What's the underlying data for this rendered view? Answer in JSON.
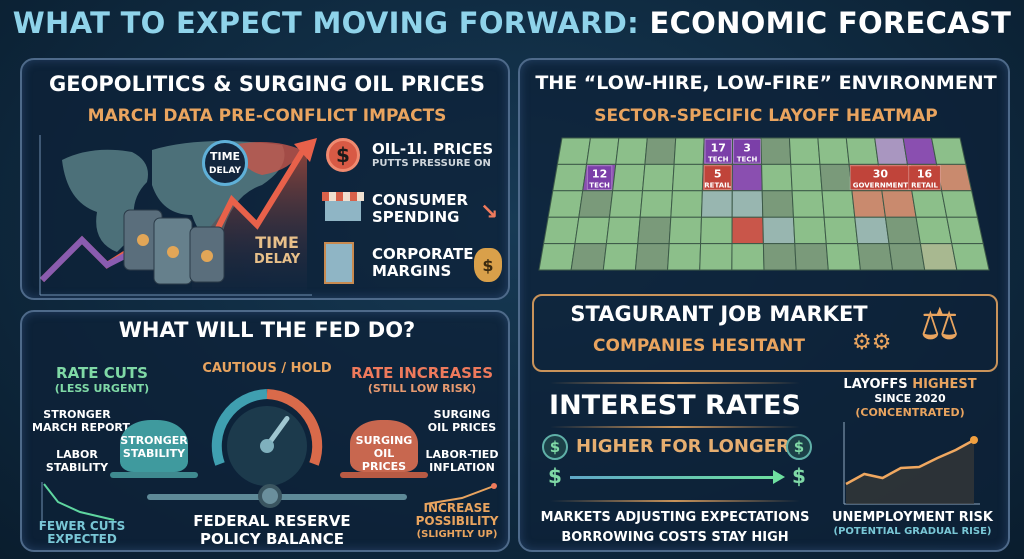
{
  "header": {
    "title_part1": "WHAT TO EXPECT MOVING FORWARD:",
    "title_part2": "ECONOMIC FORECAST"
  },
  "oil_panel": {
    "title": "GEOPOLITICS & SURGING OIL PRICES",
    "subtitle": "MARCH DATA PRE-CONFLICT IMPACTS",
    "time_delay_badge": [
      "TIME",
      "DELAY"
    ],
    "time_delay_label": [
      "TIME",
      "DELAY"
    ],
    "impacts": [
      {
        "title": "OIL-1I. PRICES",
        "sub": "PUTTS PRESSURE ON",
        "icon": "dollar-coin-icon"
      },
      {
        "title": [
          "CONSUMER",
          "SPENDING"
        ],
        "icon": "storefront-icon"
      },
      {
        "title": [
          "CORPORATE",
          "MARGINS"
        ],
        "icon": "office-building-icon"
      }
    ]
  },
  "fed_panel": {
    "title": "WHAT WILL THE FED DO?",
    "rate_cuts": {
      "title": "RATE CUTS",
      "sub": "(LESS URGENT)"
    },
    "rate_increases": {
      "title": "RATE INCREASES",
      "sub": "(STILL LOW RISK)"
    },
    "left_factors": [
      [
        "STRONGER",
        "MARCH REPORT"
      ],
      [
        "LABOR",
        "STABILITY"
      ]
    ],
    "left_bag": [
      "STRONGER",
      "STABILITY"
    ],
    "right_factors": [
      [
        "SURGING",
        "OIL PRICES"
      ],
      [
        "LABOR-TIED",
        "INFLATION"
      ]
    ],
    "right_bag": [
      "SURGING",
      "OIL PRICES"
    ],
    "gauge_label": "CAUTIOUS / HOLD",
    "gauge_level": 0.7,
    "balance_label": [
      "FEDERAL RESERVE",
      "POLICY BALANCE"
    ],
    "left_note": [
      "FEWER CUTS",
      "EXPECTED"
    ],
    "right_note": [
      "INCREASE",
      "POSSIBILITY",
      "(SLIGHTLY UP)"
    ]
  },
  "jobs_panel": {
    "title": "THE “LOW-HIRE, LOW-FIRE” ENVIRONMENT",
    "subtitle": "SECTOR-SPECIFIC LAYOFF HEATMAP",
    "heatmap": {
      "rows": [
        "gggdgppdgggLpg",
        "gpgggrpggdrrro",
        "gdgggbbdggoogg",
        "gggdggrbggbdgg",
        "gdgdgggddgddyg"
      ],
      "labels": [
        {
          "row": 0,
          "col": 5,
          "span": 1,
          "value": "17",
          "sector": "TECH",
          "kind": "p"
        },
        {
          "row": 0,
          "col": 6,
          "span": 1,
          "value": "3",
          "sector": "TECH",
          "kind": "p"
        },
        {
          "row": 1,
          "col": 1,
          "span": 1,
          "value": "12",
          "sector": "TECH",
          "kind": "p"
        },
        {
          "row": 1,
          "col": 5,
          "span": 1,
          "value": "5",
          "sector": "RETAIL",
          "kind": "r"
        },
        {
          "row": 1,
          "col": 10,
          "span": 2,
          "value": "30",
          "sector": "GOVERNMENT",
          "kind": "r"
        },
        {
          "row": 1,
          "col": 12,
          "span": 1,
          "value": "16",
          "sector": "RETAIL",
          "kind": "r"
        }
      ],
      "colors": {
        "g": "#8cbf8a",
        "d": "#7a9a7a",
        "p": "#8a4fb0",
        "L": "#a996c0",
        "r": "#c9564a",
        "o": "#c98a6e",
        "b": "#98b6b0",
        "y": "#a8b890"
      }
    },
    "stagnant": {
      "title": "STAGURANT JOB MARKET",
      "sub": "COMPANIES HESITANT"
    },
    "interest": {
      "title": "INTEREST RATES",
      "tagline": "HIGHER FOR LONGER",
      "dollar": "$",
      "notes": [
        "MARKETS ADJUSTING EXPECTATIONS",
        "BORROWING COSTS STAY HIGH"
      ]
    },
    "layoffs": {
      "title_a": "LAYOFFS",
      "title_b": "HIGHEST",
      "line2": "SINCE 2020",
      "line3": "(CONCENTRATED)",
      "footer": "UNEMPLOYMENT RISK",
      "footer_sub": "(POTENTIAL GRADUAL RISE)",
      "trend": [
        2,
        3,
        2.6,
        3.6,
        3.7,
        4.6,
        5.4,
        6.4
      ]
    }
  }
}
